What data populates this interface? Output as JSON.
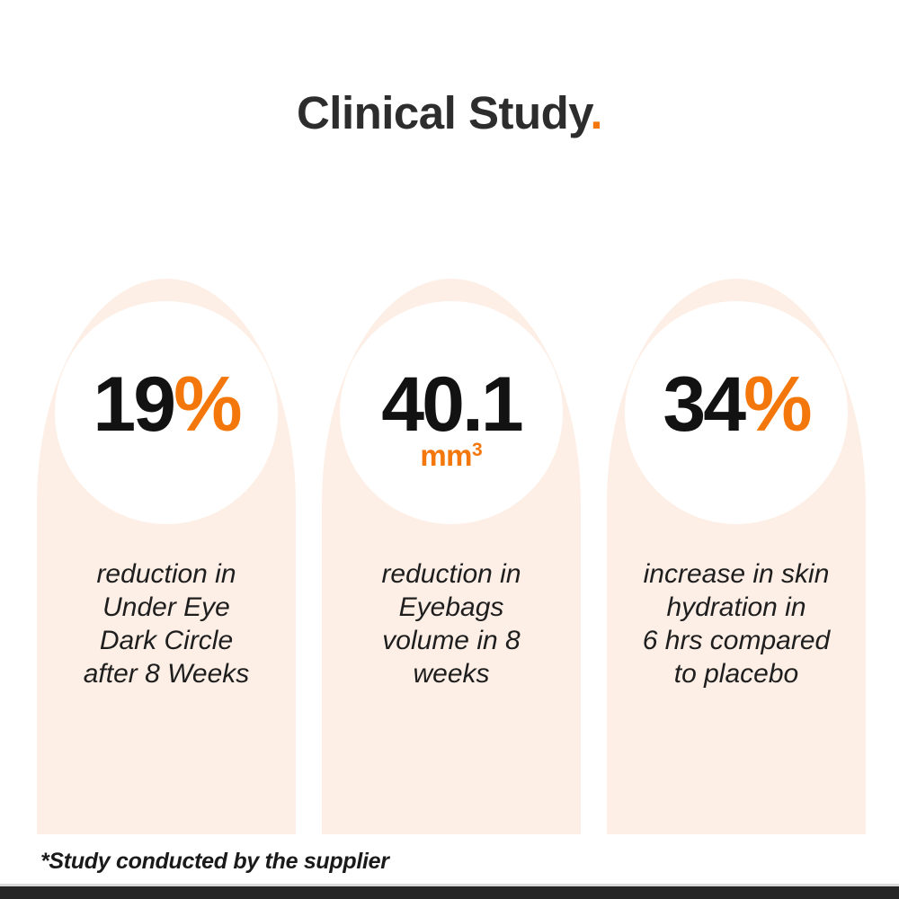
{
  "title": {
    "text": "Clinical Study",
    "dot": "."
  },
  "cards": [
    {
      "stat_number": "19",
      "stat_suffix": "%",
      "lines": [
        "reduction in",
        "Under Eye",
        "Dark Circle",
        "after 8 Weeks"
      ]
    },
    {
      "stat_number": "40.1",
      "stat_suffix": "",
      "unit": "mm",
      "unit_exponent": "3",
      "lines": [
        "reduction in",
        "Eyebags",
        "volume in 8",
        "weeks"
      ]
    },
    {
      "stat_number": "34",
      "stat_suffix": "%",
      "lines": [
        "increase in skin",
        "hydration in",
        "6 hrs compared",
        "to placebo"
      ]
    }
  ],
  "footnote": "*Study conducted by the supplier",
  "colors": {
    "accent_orange": "#f4770b",
    "card_background": "#fdefe6",
    "title_text": "#2d2d2d",
    "stat_text": "#121212",
    "body_text": "#1e1e1e",
    "divider_line": "#d9d9d9",
    "bottom_bar": "#262626",
    "page_background": "#ffffff"
  }
}
